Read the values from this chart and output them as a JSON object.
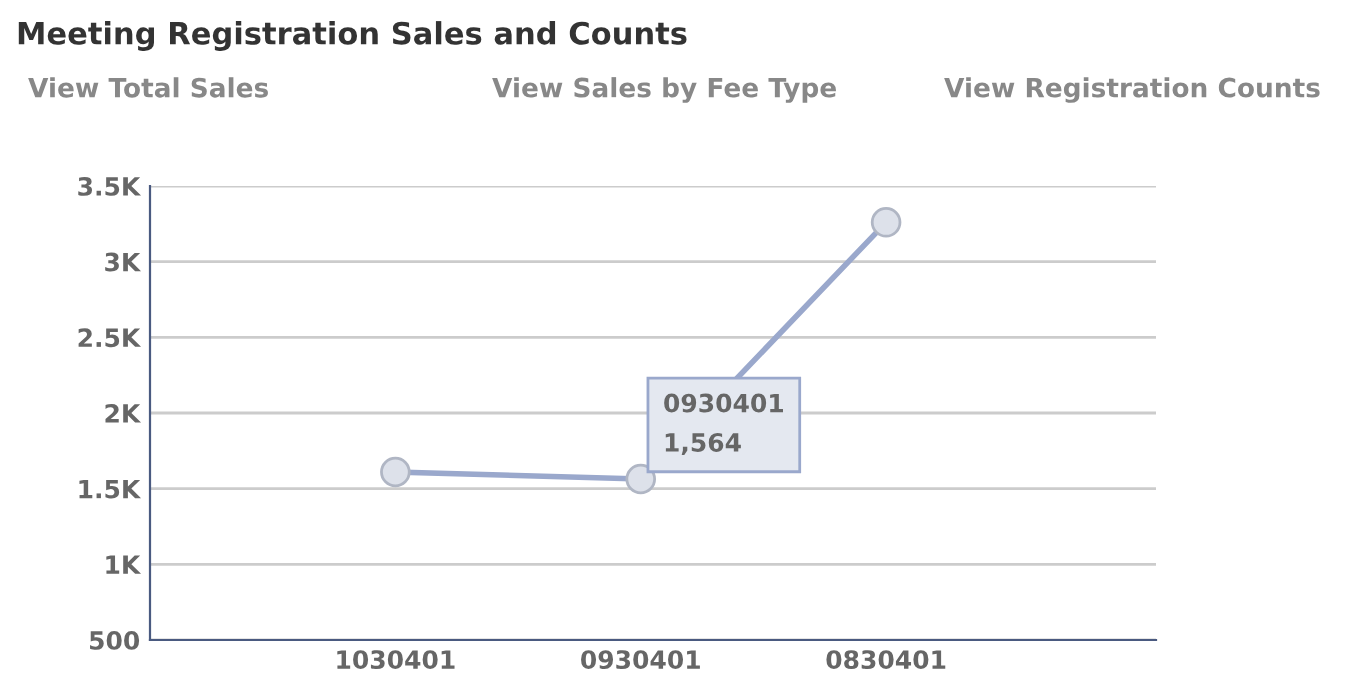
{
  "chart_data": {
    "type": "line",
    "title": "Meeting Registration Sales and Counts",
    "categories": [
      "1030401",
      "0930401",
      "0830401"
    ],
    "series": [
      {
        "color": "#9aa8cc",
        "values": [
          1610,
          1564,
          3260
        ]
      }
    ],
    "ylim": [
      500,
      3500
    ],
    "yticks": [
      500,
      {
        "value": 1000,
        "label": "1K"
      },
      {
        "value": 1500,
        "label": "1.5K"
      },
      {
        "value": 2000,
        "label": "2K"
      },
      {
        "value": 2500,
        "label": "2.5K"
      },
      {
        "value": 3000,
        "label": "3K"
      },
      {
        "value": 3500,
        "label": "3.5K"
      }
    ],
    "grid": "y",
    "marker": "circle",
    "line_style": "solid",
    "annotations": [
      "View Total Sales",
      "View Sales by Fee Type",
      "View Registration Counts",
      {
        "text": "0930401\n1,564",
        "x": "0930401",
        "y": 1564
      }
    ]
  }
}
